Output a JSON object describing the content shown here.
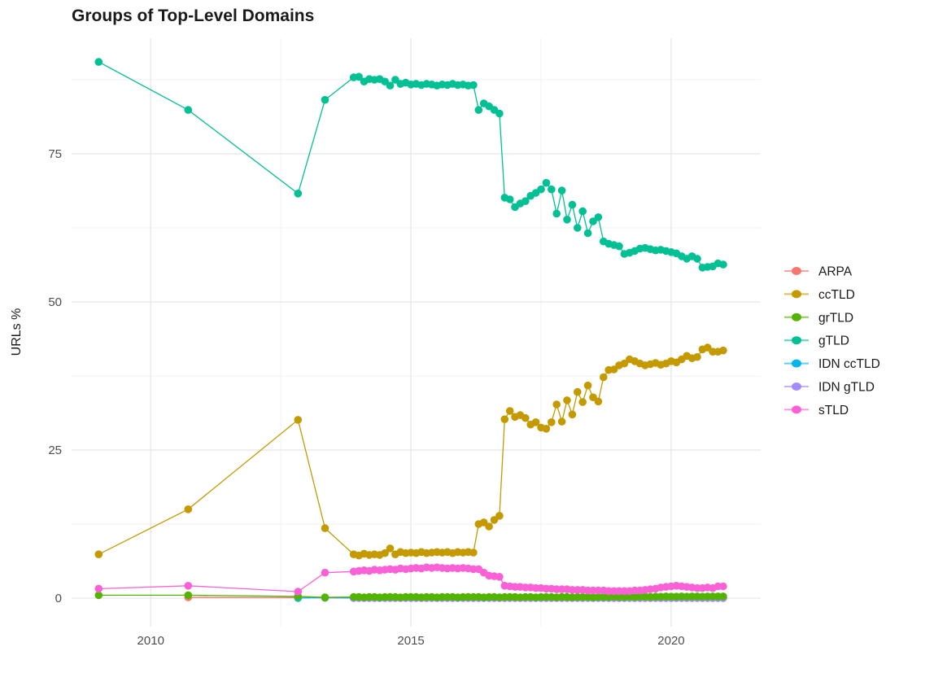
{
  "chart_data": {
    "type": "line",
    "title": "Groups of Top-Level Domains",
    "xlabel": "",
    "ylabel": "URLs %",
    "grid": "on",
    "legend_position": "right",
    "x_range": [
      2008.48,
      2021.72
    ],
    "y_range": [
      -4.8,
      94.5
    ],
    "x_ticks": {
      "values": [
        2010,
        2015,
        2020
      ],
      "labels": [
        "2010",
        "2015",
        "2020"
      ]
    },
    "x_minor": [
      2012.5,
      2017.5
    ],
    "y_ticks": {
      "values": [
        0,
        25,
        50,
        75
      ],
      "labels": [
        "0",
        "25",
        "50",
        "75"
      ]
    },
    "y_minor": [
      12.5,
      37.5,
      62.5,
      87.5
    ],
    "x_dense": {
      "start": 2013.9,
      "step": 0.1,
      "count": 72
    },
    "legend_order": [
      "ARPA",
      "ccTLD",
      "grTLD",
      "gTLD",
      "IDN ccTLD",
      "IDN gTLD",
      "sTLD"
    ],
    "colors": {
      "ARPA": "#F8766D",
      "ccTLD": "#C49A00",
      "grTLD": "#53B400",
      "gTLD": "#00C094",
      "IDN ccTLD": "#00B6EB",
      "IDN gTLD": "#A58AFF",
      "sTLD": "#FB61D7"
    },
    "series": [
      {
        "name": "ARPA",
        "sparse": [
          [
            2010.72,
            0.15
          ],
          [
            2012.83,
            0.1
          ],
          [
            2013.35,
            0.05
          ]
        ],
        "dense": [
          0.05,
          0.05,
          0.05,
          0.05,
          0.05,
          0.05,
          0.05,
          0.05,
          0.05,
          0.05,
          0.05,
          0.05,
          0.05,
          0.05,
          0.05,
          0.05,
          0.05,
          0.05,
          0.05,
          0.05,
          0.05,
          0.05,
          0.05,
          0.05,
          0.05,
          0.05,
          0.05,
          0.05,
          0.05,
          0.05,
          0.05,
          0.05,
          0.05,
          0.05,
          0.05,
          0.05,
          0.05,
          0.05,
          0.05,
          0.05,
          0.05,
          0.05,
          0.05,
          0.05,
          0.05,
          0.05,
          0.05,
          0.05,
          0.05,
          0.05,
          0.05,
          0.05,
          0.05,
          0.05,
          0.05,
          0.05,
          0.05,
          0.05,
          0.05,
          0.05,
          0.05,
          0.05,
          0.05,
          0.05,
          0.05,
          0.05,
          0.05,
          0.05,
          0.05,
          0.05,
          0.05,
          0.05
        ]
      },
      {
        "name": "IDN ccTLD",
        "sparse": [
          [
            2012.83,
            0.02
          ],
          [
            2013.35,
            0.1
          ]
        ],
        "dense": [
          0.05,
          0.05,
          0.05,
          0.05,
          0.05,
          0.05,
          0.05,
          0.05,
          0.05,
          0.05,
          0.05,
          0.05,
          0.05,
          0.05,
          0.05,
          0.05,
          0.05,
          0.05,
          0.05,
          0.05,
          0.05,
          0.05,
          0.05,
          0.05,
          0.05,
          0.05,
          0.05,
          0.05,
          0.05,
          0.05,
          0.05,
          0.05,
          0.05,
          0.05,
          0.05,
          0.05,
          0.05,
          0.05,
          0.05,
          0.05,
          0.05,
          0.05,
          0.05,
          0.05,
          0.05,
          0.05,
          0.05,
          0.05,
          0.05,
          0.05,
          0.05,
          0.05,
          0.05,
          0.05,
          0.05,
          0.05,
          0.05,
          0.05,
          0.05,
          0.05,
          0.05,
          0.05,
          0.05,
          0.05,
          0.05,
          0.05,
          0.05,
          0.05,
          0.05,
          0.05,
          0.05,
          0.05
        ]
      },
      {
        "name": "IDN gTLD",
        "sparse": [],
        "dense": [
          0.02,
          0.02,
          0.02,
          0.02,
          0.02,
          0.02,
          0.02,
          0.02,
          0.02,
          0.02,
          0.02,
          0.02,
          0.02,
          0.02,
          0.02,
          0.02,
          0.02,
          0.02,
          0.02,
          0.02,
          0.02,
          0.02,
          0.02,
          0.02,
          0.02,
          0.02,
          0.02,
          0.02,
          0.02,
          0.02,
          0.02,
          0.02,
          0.02,
          0.02,
          0.02,
          0.02,
          0.02,
          0.02,
          0.02,
          0.02,
          0.02,
          0.02,
          0.02,
          0.02,
          0.02,
          0.02,
          0.02,
          0.02,
          0.02,
          0.02,
          0.02,
          0.02,
          0.02,
          0.02,
          0.02,
          0.02,
          0.02,
          0.02,
          0.02,
          0.02,
          0.02,
          0.02,
          0.02,
          0.02,
          0.02,
          0.02,
          0.02,
          0.02,
          0.02,
          0.02,
          0.02,
          0.02
        ]
      },
      {
        "name": "ccTLD",
        "sparse": [
          [
            2009.0,
            7.4
          ],
          [
            2010.72,
            15.0
          ],
          [
            2012.83,
            30.1
          ],
          [
            2013.35,
            11.8
          ]
        ],
        "dense": [
          7.4,
          7.2,
          7.5,
          7.3,
          7.4,
          7.3,
          7.6,
          8.4,
          7.4,
          7.8,
          7.6,
          7.7,
          7.6,
          7.8,
          7.6,
          7.7,
          7.8,
          7.7,
          7.8,
          7.6,
          7.8,
          7.7,
          7.8,
          7.7,
          12.5,
          12.8,
          12.1,
          13.2,
          13.9,
          30.2,
          31.6,
          30.6,
          30.9,
          30.4,
          29.3,
          29.7,
          28.8,
          28.6,
          29.7,
          32.7,
          29.8,
          33.4,
          31.0,
          34.8,
          33.1,
          35.9,
          33.9,
          33.2,
          37.3,
          38.5,
          38.6,
          39.3,
          39.6,
          40.3,
          40.0,
          39.6,
          39.3,
          39.5,
          39.7,
          39.4,
          39.6,
          40.0,
          39.8,
          40.3,
          40.9,
          40.5,
          40.7,
          42.0,
          42.3,
          41.6,
          41.6,
          41.8
        ]
      },
      {
        "name": "grTLD",
        "sparse": [
          [
            2009.0,
            0.5
          ],
          [
            2010.72,
            0.5
          ],
          [
            2012.83,
            0.3
          ],
          [
            2013.35,
            0.15
          ]
        ],
        "dense": [
          0.2,
          0.2,
          0.15,
          0.2,
          0.2,
          0.15,
          0.2,
          0.2,
          0.2,
          0.15,
          0.2,
          0.2,
          0.2,
          0.15,
          0.2,
          0.2,
          0.15,
          0.2,
          0.2,
          0.2,
          0.15,
          0.2,
          0.2,
          0.2,
          0.2,
          0.15,
          0.2,
          0.2,
          0.15,
          0.2,
          0.2,
          0.2,
          0.15,
          0.2,
          0.2,
          0.15,
          0.2,
          0.2,
          0.2,
          0.15,
          0.2,
          0.2,
          0.15,
          0.2,
          0.2,
          0.2,
          0.15,
          0.2,
          0.2,
          0.2,
          0.25,
          0.2,
          0.2,
          0.25,
          0.2,
          0.25,
          0.25,
          0.2,
          0.25,
          0.25,
          0.3,
          0.25,
          0.25,
          0.3,
          0.25,
          0.3,
          0.3,
          0.25,
          0.3,
          0.3,
          0.3,
          0.3
        ]
      },
      {
        "name": "gTLD",
        "sparse": [
          [
            2009.0,
            90.5
          ],
          [
            2010.72,
            82.4
          ],
          [
            2012.83,
            68.3
          ],
          [
            2013.35,
            84.1
          ]
        ],
        "dense": [
          87.9,
          88.0,
          87.2,
          87.6,
          87.5,
          87.6,
          87.2,
          86.5,
          87.5,
          86.8,
          87.0,
          86.7,
          86.8,
          86.6,
          86.8,
          86.7,
          86.5,
          86.7,
          86.6,
          86.8,
          86.6,
          86.7,
          86.5,
          86.6,
          82.4,
          83.5,
          83.0,
          82.4,
          81.8,
          67.6,
          67.3,
          66.0,
          66.6,
          67.0,
          67.9,
          68.4,
          69.0,
          70.1,
          69.0,
          64.9,
          68.8,
          63.9,
          66.4,
          62.5,
          65.3,
          61.6,
          63.6,
          64.3,
          60.2,
          59.8,
          59.6,
          59.4,
          58.1,
          58.3,
          58.6,
          59.0,
          59.1,
          58.9,
          58.7,
          58.8,
          58.6,
          58.4,
          58.2,
          57.7,
          57.3,
          57.7,
          57.3,
          55.8,
          55.9,
          56.0,
          56.5,
          56.3
        ]
      },
      {
        "name": "sTLD",
        "sparse": [
          [
            2009.0,
            1.6
          ],
          [
            2010.72,
            2.1
          ],
          [
            2012.83,
            1.1
          ],
          [
            2013.35,
            4.3
          ]
        ],
        "dense": [
          4.5,
          4.6,
          4.7,
          4.6,
          4.8,
          4.7,
          4.8,
          4.9,
          4.8,
          5.0,
          4.9,
          5.0,
          5.1,
          5.0,
          5.2,
          5.1,
          5.2,
          5.1,
          5.0,
          5.1,
          5.0,
          5.1,
          5.0,
          4.9,
          4.9,
          4.3,
          3.8,
          3.7,
          3.6,
          2.1,
          2.0,
          1.9,
          1.9,
          1.8,
          1.8,
          1.7,
          1.7,
          1.6,
          1.6,
          1.5,
          1.5,
          1.5,
          1.4,
          1.4,
          1.4,
          1.3,
          1.3,
          1.3,
          1.3,
          1.2,
          1.2,
          1.2,
          1.2,
          1.2,
          1.3,
          1.3,
          1.4,
          1.5,
          1.6,
          1.8,
          1.9,
          2.0,
          2.1,
          2.0,
          1.9,
          1.8,
          1.7,
          1.7,
          1.8,
          1.7,
          2.0,
          2.0
        ]
      }
    ]
  }
}
